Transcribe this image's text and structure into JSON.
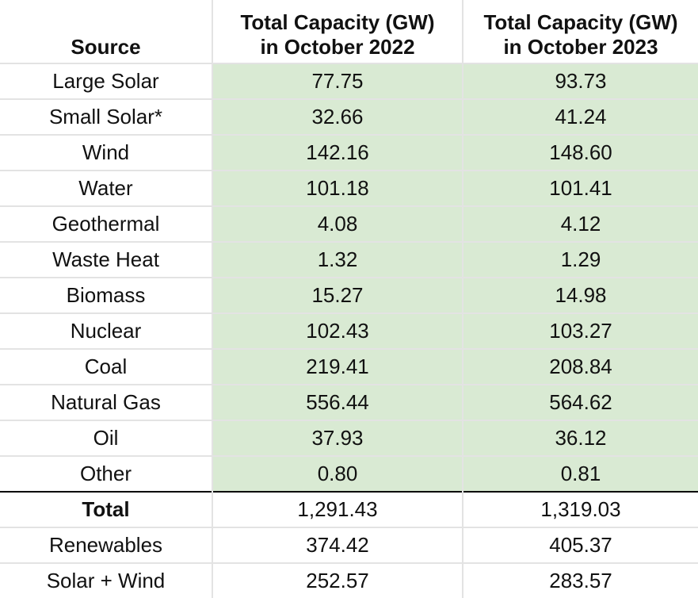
{
  "header": {
    "source": "Source",
    "col1_line1": "Total Capacity (GW)",
    "col1_line2": "in October 2022",
    "col2_line1": "Total Capacity (GW)",
    "col2_line2": "in October 2023"
  },
  "rows": [
    {
      "source": "Large Solar",
      "y2022": "77.75",
      "y2023": "93.73"
    },
    {
      "source": "Small Solar*",
      "y2022": "32.66",
      "y2023": "41.24"
    },
    {
      "source": "Wind",
      "y2022": "142.16",
      "y2023": "148.60"
    },
    {
      "source": "Water",
      "y2022": "101.18",
      "y2023": "101.41"
    },
    {
      "source": "Geothermal",
      "y2022": "4.08",
      "y2023": "4.12"
    },
    {
      "source": "Waste Heat",
      "y2022": "1.32",
      "y2023": "1.29"
    },
    {
      "source": "Biomass",
      "y2022": "15.27",
      "y2023": "14.98"
    },
    {
      "source": "Nuclear",
      "y2022": "102.43",
      "y2023": "103.27"
    },
    {
      "source": "Coal",
      "y2022": "219.41",
      "y2023": "208.84"
    },
    {
      "source": "Natural Gas",
      "y2022": "556.44",
      "y2023": "564.62"
    },
    {
      "source": "Oil",
      "y2022": "37.93",
      "y2023": "36.12"
    },
    {
      "source": "Other",
      "y2022": "0.80",
      "y2023": "0.81"
    }
  ],
  "totals": [
    {
      "source": "Total",
      "y2022": "1,291.43",
      "y2023": "1,319.03"
    },
    {
      "source": "Renewables",
      "y2022": "374.42",
      "y2023": "405.37"
    },
    {
      "source": "Solar + Wind",
      "y2022": "252.57",
      "y2023": "283.57"
    }
  ],
  "colors": {
    "data_cell_fill": "#d9ead3",
    "grid_line": "#e3e3e3",
    "total_separator": "#000000"
  }
}
